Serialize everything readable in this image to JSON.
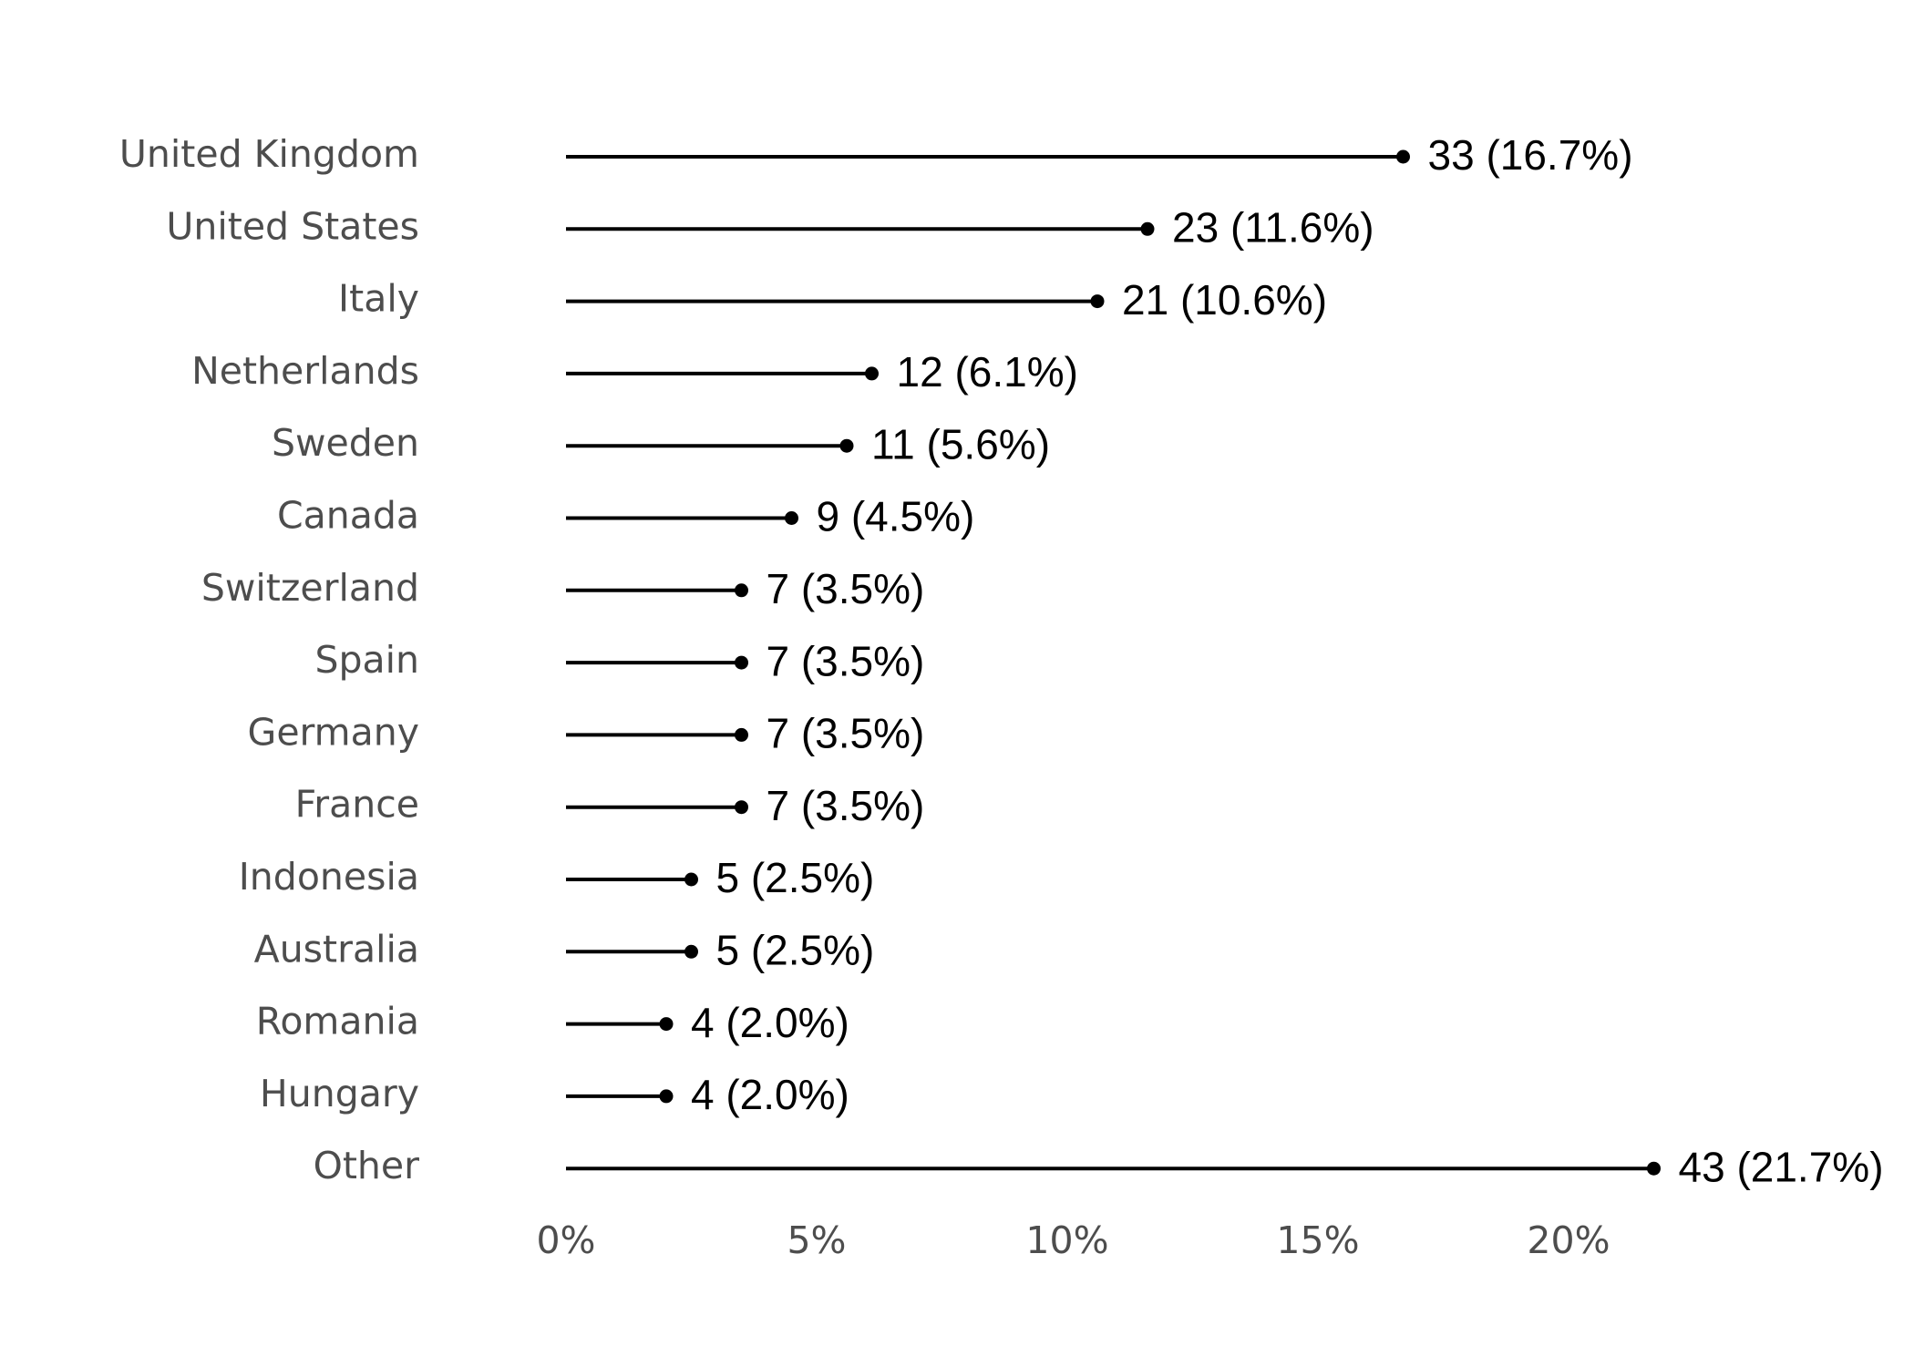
{
  "chart_data": {
    "type": "lollipop",
    "title": "",
    "xlabel": "",
    "ylabel": "",
    "xlim": [
      0,
      22
    ],
    "x_ticks": [
      {
        "value": 0,
        "label": "0%"
      },
      {
        "value": 5,
        "label": "5%"
      },
      {
        "value": 10,
        "label": "10%"
      },
      {
        "value": 15,
        "label": "15%"
      },
      {
        "value": 20,
        "label": "20%"
      }
    ],
    "grid": false,
    "categories": [
      "United Kingdom",
      "United States",
      "Italy",
      "Netherlands",
      "Sweden",
      "Canada",
      "Switzerland",
      "Spain",
      "Germany",
      "France",
      "Indonesia",
      "Australia",
      "Romania",
      "Hungary",
      "Other"
    ],
    "counts": [
      33,
      23,
      21,
      12,
      11,
      9,
      7,
      7,
      7,
      7,
      5,
      5,
      4,
      4,
      43
    ],
    "percents": [
      16.7,
      11.6,
      10.6,
      6.1,
      5.6,
      4.5,
      3.5,
      3.5,
      3.5,
      3.5,
      2.5,
      2.5,
      2.0,
      2.0,
      21.7
    ],
    "data_labels": [
      "33 (16.7%)",
      "23 (11.6%)",
      "21 (10.6%)",
      "12 (6.1%)",
      "11 (5.6%)",
      "9 (4.5%)",
      "7 (3.5%)",
      "7 (3.5%)",
      "7 (3.5%)",
      "7 (3.5%)",
      "5 (2.5%)",
      "5 (2.5%)",
      "4 (2.0%)",
      "4 (2.0%)",
      "43 (21.7%)"
    ],
    "colors": {
      "mark": "#000000",
      "category_text": "#4d4d4d",
      "tick_text": "#4d4d4d",
      "background": "#ffffff"
    }
  }
}
